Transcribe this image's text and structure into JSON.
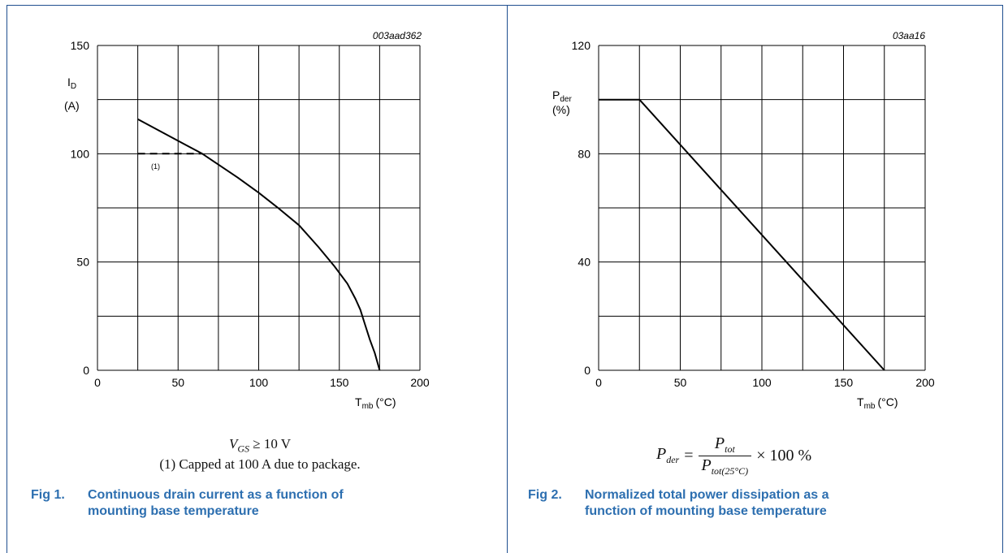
{
  "chart_data": [
    {
      "type": "line",
      "code": "003aad362",
      "ylabel_main": "I",
      "ylabel_sub": "D",
      "ylabel_unit": "(A)",
      "xlabel_main": "T",
      "xlabel_sub": "mb",
      "xlabel_unit": "(°C)",
      "xlim": [
        0,
        200
      ],
      "ylim": [
        0,
        150
      ],
      "x_ticks": [
        "0",
        "50",
        "100",
        "150",
        "200"
      ],
      "y_ticks": [
        "0",
        "50",
        "100",
        "150"
      ],
      "grid": true,
      "series": [
        {
          "style": "solid",
          "x": [
            25,
            40,
            55,
            65,
            75,
            87,
            100,
            112,
            125,
            137,
            147,
            155,
            160,
            163,
            166,
            169,
            172,
            175
          ],
          "y": [
            116,
            110,
            104,
            100,
            95,
            89,
            82,
            75,
            67,
            57,
            48,
            40,
            33,
            28,
            21,
            14,
            8,
            0
          ]
        },
        {
          "style": "dashed",
          "x": [
            25,
            65
          ],
          "y": [
            100,
            100
          ]
        }
      ],
      "annotations": [
        {
          "text": "(1)",
          "x": 36,
          "y": 93
        }
      ],
      "notes": [
        "V",
        "GS",
        " ≥ 10 V",
        "(1) Capped at 100 A due to package."
      ]
    },
    {
      "type": "line",
      "code": "03aa16",
      "ylabel_main": "P",
      "ylabel_sub": "der",
      "ylabel_unit": "(%)",
      "xlabel_main": "T",
      "xlabel_sub": "mb",
      "xlabel_unit": "(°C)",
      "xlim": [
        0,
        200
      ],
      "ylim": [
        0,
        120
      ],
      "x_ticks": [
        "0",
        "50",
        "100",
        "150",
        "200"
      ],
      "y_ticks": [
        "0",
        "40",
        "80",
        "120"
      ],
      "grid": true,
      "series": [
        {
          "style": "solid",
          "x": [
            0,
            25,
            175
          ],
          "y": [
            100,
            100,
            0
          ]
        }
      ],
      "formula": {
        "lhs_main": "P",
        "lhs_sub": "der",
        "equals": "=",
        "num_main": "P",
        "num_sub": "tot",
        "den_main": "P",
        "den_sub": "tot(25°C)",
        "tail": "× 100 %"
      }
    }
  ],
  "captions": [
    {
      "number": "Fig 1.",
      "line1": "Continuous drain current as a function of",
      "line2": "mounting base temperature"
    },
    {
      "number": "Fig 2.",
      "line1": "Normalized total power dissipation as a",
      "line2": "function of mounting base temperature"
    }
  ]
}
